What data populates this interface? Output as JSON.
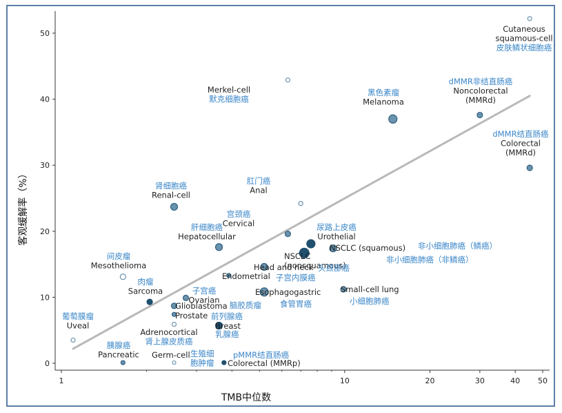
{
  "chart_data": {
    "type": "scatter",
    "xlabel": "TMB中位数",
    "ylabel": "客观缓解率（%）",
    "xscale": "log",
    "xlim": [
      1,
      50
    ],
    "ylim": [
      0,
      53
    ],
    "xticks": [
      1,
      10,
      20,
      30,
      40,
      50
    ],
    "yticks": [
      0,
      10,
      20,
      30,
      40,
      50
    ],
    "colors": {
      "frame": "#5b7ea8",
      "axis": "#333333",
      "trendline": "#b8b8b8",
      "point_fill_light": "#6a93ad",
      "point_fill_dark": "#1f5070",
      "label_en": "#222222",
      "label_zh": "#3a86c8"
    },
    "trendline": {
      "x": [
        1.1,
        45
      ],
      "y": [
        2.2,
        40.5
      ]
    },
    "points": [
      {
        "name": "Cutaneous squamous-cell",
        "en": [
          "Cutaneous",
          "squamous-cell"
        ],
        "zh": [
          "皮肤鳞状细胞癌"
        ],
        "x": 45,
        "y": 52.2,
        "size": 3,
        "fill": "open"
      },
      {
        "name": "Merkel-cell",
        "en": [
          "Merkel-cell"
        ],
        "zh": [
          "默克细胞癌"
        ],
        "x": 6.3,
        "y": 42.9,
        "size": 3,
        "fill": "open"
      },
      {
        "name": "Melanoma",
        "en": [
          "Melanoma"
        ],
        "zh": [
          "黑色素瘤"
        ],
        "x": 14.8,
        "y": 37.0,
        "size": 6,
        "fill": "light"
      },
      {
        "name": "Noncolorectal (MMRd)",
        "en": [
          "Noncolorectal",
          "(MMRd)"
        ],
        "zh": [
          "dMMR非结直肠癌"
        ],
        "x": 30,
        "y": 37.6,
        "size": 4,
        "fill": "light"
      },
      {
        "name": "Colorectal (MMRd)",
        "en": [
          "Colorectal",
          "(MMRd)"
        ],
        "zh": [
          "dMMR结直肠癌"
        ],
        "x": 45,
        "y": 29.6,
        "size": 4,
        "fill": "light"
      },
      {
        "name": "Renal-cell",
        "en": [
          "Renal-cell"
        ],
        "zh": [
          "肾细胞癌"
        ],
        "x": 2.5,
        "y": 23.7,
        "size": 5,
        "fill": "light"
      },
      {
        "name": "Anal",
        "en": [
          "Anal"
        ],
        "zh": [
          "肛门癌"
        ],
        "x": 7.0,
        "y": 24.2,
        "size": 3,
        "fill": "open"
      },
      {
        "name": "Cervical",
        "en": [
          "Cervical"
        ],
        "zh": [
          "宫颈癌"
        ],
        "x": 6.3,
        "y": 19.6,
        "size": 4,
        "fill": "light"
      },
      {
        "name": "Hepatocellular",
        "en": [
          "Hepatocellular"
        ],
        "zh": [
          "肝细胞癌"
        ],
        "x": 3.6,
        "y": 17.6,
        "size": 5,
        "fill": "light"
      },
      {
        "name": "Urothelial",
        "en": [
          "Urothelial"
        ],
        "zh": [
          "尿路上皮癌"
        ],
        "x": 7.6,
        "y": 18.1,
        "size": 6,
        "fill": "dark"
      },
      {
        "name": "NSCLC (nonsquamous)",
        "en": [
          "NSCLC",
          "(nonsquamous)"
        ],
        "zh": [
          "非小细胞肺癌（非鳞癌）"
        ],
        "x": 7.2,
        "y": 16.7,
        "size": 7,
        "fill": "dark"
      },
      {
        "name": "NSCLC (squamous)",
        "en": [
          "NSCLC (squamous)"
        ],
        "zh": [
          "非小细胞肺癌（鳞癌）"
        ],
        "x": 9.1,
        "y": 17.4,
        "size": 5,
        "fill": "light"
      },
      {
        "name": "Mesothelioma",
        "en": [
          "Mesothelioma"
        ],
        "zh": [
          "间皮瘤"
        ],
        "x": 1.65,
        "y": 13.1,
        "size": 4,
        "fill": "open"
      },
      {
        "name": "Head and neck",
        "en": [
          "Head and neck"
        ],
        "zh": [
          "头颈部癌"
        ],
        "x": 5.2,
        "y": 14.6,
        "size": 5,
        "fill": "light"
      },
      {
        "name": "Endometrial",
        "en": [
          "Endometrial"
        ],
        "zh": [
          "子宫内膜癌"
        ],
        "x": 3.9,
        "y": 13.3,
        "size": 3,
        "fill": "light"
      },
      {
        "name": "Sarcoma",
        "en": [
          "Sarcoma"
        ],
        "zh": [
          "肉瘤"
        ],
        "x": 2.05,
        "y": 9.3,
        "size": 4,
        "fill": "dark"
      },
      {
        "name": "Ovarian",
        "en": [
          "Ovarian"
        ],
        "zh": [
          "子宫癌"
        ],
        "x": 2.75,
        "y": 9.9,
        "size": 4,
        "fill": "light"
      },
      {
        "name": "Glioblastoma",
        "en": [
          "Glioblastoma"
        ],
        "zh": [
          "脑胶质瘤"
        ],
        "x": 2.5,
        "y": 8.7,
        "size": 4,
        "fill": "light"
      },
      {
        "name": "Esophagogastric",
        "en": [
          "Esophagogastric"
        ],
        "zh": [
          "食管胃癌"
        ],
        "x": 5.2,
        "y": 10.8,
        "size": 6,
        "fill": "light"
      },
      {
        "name": "Small-cell lung",
        "en": [
          "Small-cell lung"
        ],
        "zh": [
          "小细胞肺癌"
        ],
        "x": 9.9,
        "y": 11.2,
        "size": 4,
        "fill": "light"
      },
      {
        "name": "Prostate",
        "en": [
          "Prostate"
        ],
        "zh": [
          "前列腺癌"
        ],
        "x": 2.5,
        "y": 7.4,
        "size": 3,
        "fill": "light"
      },
      {
        "name": "Breast",
        "en": [
          "Breast"
        ],
        "zh": [
          "乳腺癌"
        ],
        "x": 3.6,
        "y": 5.7,
        "size": 5,
        "fill": "dark"
      },
      {
        "name": "Uveal",
        "en": [
          "Uveal"
        ],
        "zh": [
          "葡萄膜瘤"
        ],
        "x": 1.1,
        "y": 3.5,
        "size": 3,
        "fill": "open"
      },
      {
        "name": "Adrenocortical",
        "en": [
          "Adrenocortical"
        ],
        "zh": [
          "肾上腺皮质癌"
        ],
        "x": 2.5,
        "y": 5.9,
        "size": 3,
        "fill": "open"
      },
      {
        "name": "Pancreatic",
        "en": [
          "Pancreatic"
        ],
        "zh": [
          "胰腺癌"
        ],
        "x": 1.65,
        "y": 0.1,
        "size": 3,
        "fill": "light"
      },
      {
        "name": "Germ-cell",
        "en": [
          "Germ-cell"
        ],
        "zh": [
          "生殖细",
          "胞肿瘤"
        ],
        "x": 2.5,
        "y": 0.1,
        "size": 2.5,
        "fill": "open"
      },
      {
        "name": "Colorectal (MMRp)",
        "en": [
          "Colorectal (MMRp)"
        ],
        "zh": [
          "pMMR结直肠癌"
        ],
        "x": 3.75,
        "y": 0.1,
        "size": 3,
        "fill": "dark"
      }
    ]
  }
}
